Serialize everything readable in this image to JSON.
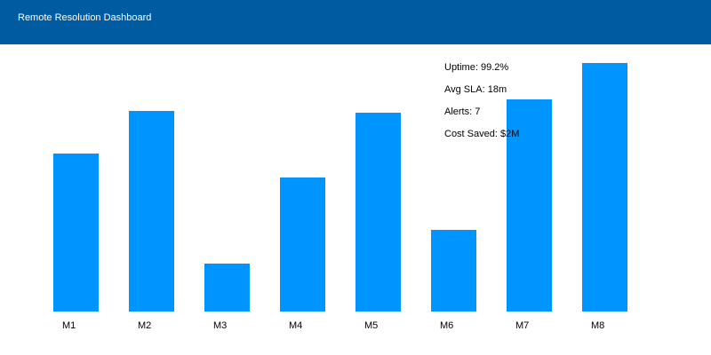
{
  "header": {
    "title": "Remote Resolution Dashboard"
  },
  "colors": {
    "header_bg": "#005ba1",
    "bar": "#0094ff"
  },
  "kpis": {
    "uptime": "Uptime: 99.2%",
    "avg_sla": "Avg SLA: 18m",
    "alerts": "Alerts: 7",
    "cost_saved": "Cost Saved: $2M"
  },
  "chart_data": {
    "type": "bar",
    "title": "",
    "xlabel": "",
    "ylabel": "",
    "categories": [
      "M1",
      "M2",
      "M3",
      "M4",
      "M5",
      "M6",
      "M7",
      "M8"
    ],
    "values": [
      178,
      226,
      54,
      151,
      224,
      92,
      239,
      280
    ],
    "ylim": [
      0,
      280
    ],
    "grid": false,
    "legend": "none"
  }
}
